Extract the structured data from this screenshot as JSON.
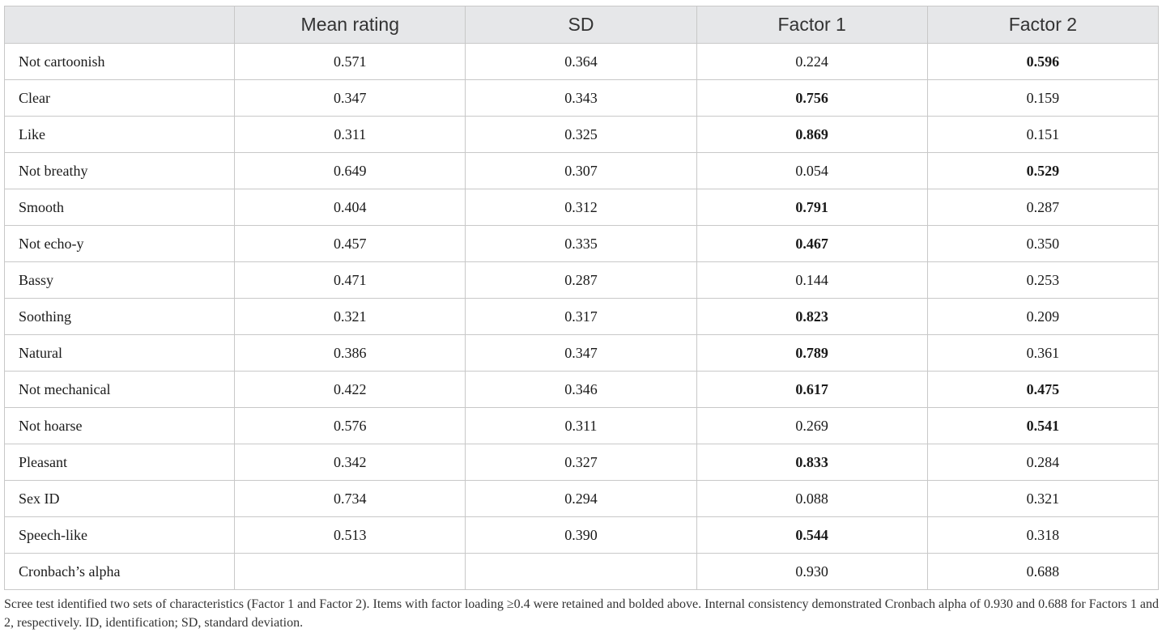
{
  "table": {
    "headers": [
      "",
      "Mean rating",
      "SD",
      "Factor 1",
      "Factor 2"
    ],
    "rows": [
      {
        "label": "Not cartoonish",
        "cells": [
          "0.571",
          "0.364",
          "0.224",
          "0.596"
        ],
        "bold": [
          false,
          false,
          false,
          true
        ]
      },
      {
        "label": "Clear",
        "cells": [
          "0.347",
          "0.343",
          "0.756",
          "0.159"
        ],
        "bold": [
          false,
          false,
          true,
          false
        ]
      },
      {
        "label": "Like",
        "cells": [
          "0.311",
          "0.325",
          "0.869",
          "0.151"
        ],
        "bold": [
          false,
          false,
          true,
          false
        ]
      },
      {
        "label": "Not breathy",
        "cells": [
          "0.649",
          "0.307",
          "0.054",
          "0.529"
        ],
        "bold": [
          false,
          false,
          false,
          true
        ]
      },
      {
        "label": "Smooth",
        "cells": [
          "0.404",
          "0.312",
          "0.791",
          "0.287"
        ],
        "bold": [
          false,
          false,
          true,
          false
        ]
      },
      {
        "label": "Not echo-y",
        "cells": [
          "0.457",
          "0.335",
          "0.467",
          "0.350"
        ],
        "bold": [
          false,
          false,
          true,
          false
        ]
      },
      {
        "label": "Bassy",
        "cells": [
          "0.471",
          "0.287",
          "0.144",
          "0.253"
        ],
        "bold": [
          false,
          false,
          false,
          false
        ]
      },
      {
        "label": "Soothing",
        "cells": [
          "0.321",
          "0.317",
          "0.823",
          "0.209"
        ],
        "bold": [
          false,
          false,
          true,
          false
        ]
      },
      {
        "label": "Natural",
        "cells": [
          "0.386",
          "0.347",
          "0.789",
          "0.361"
        ],
        "bold": [
          false,
          false,
          true,
          false
        ]
      },
      {
        "label": "Not mechanical",
        "cells": [
          "0.422",
          "0.346",
          "0.617",
          "0.475"
        ],
        "bold": [
          false,
          false,
          true,
          true
        ]
      },
      {
        "label": "Not hoarse",
        "cells": [
          "0.576",
          "0.311",
          "0.269",
          "0.541"
        ],
        "bold": [
          false,
          false,
          false,
          true
        ]
      },
      {
        "label": "Pleasant",
        "cells": [
          "0.342",
          "0.327",
          "0.833",
          "0.284"
        ],
        "bold": [
          false,
          false,
          true,
          false
        ]
      },
      {
        "label": "Sex ID",
        "cells": [
          "0.734",
          "0.294",
          "0.088",
          "0.321"
        ],
        "bold": [
          false,
          false,
          false,
          false
        ]
      },
      {
        "label": "Speech-like",
        "cells": [
          "0.513",
          "0.390",
          "0.544",
          "0.318"
        ],
        "bold": [
          false,
          false,
          true,
          false
        ]
      },
      {
        "label": "Cronbach’s alpha",
        "cells": [
          "",
          "",
          "0.930",
          "0.688"
        ],
        "bold": [
          false,
          false,
          false,
          false
        ]
      }
    ]
  },
  "footnote": "Scree test identified two sets of characteristics (Factor 1 and Factor 2). Items with factor loading ≥0.4 were retained and bolded above. Internal consistency demonstrated Cronbach alpha of 0.930 and 0.688 for Factors 1 and 2, respectively. ID, identification; SD, standard deviation.",
  "colors": {
    "header_bg": "#e6e7e9",
    "border": "#c8c8c8",
    "text": "#1a1a1a"
  }
}
